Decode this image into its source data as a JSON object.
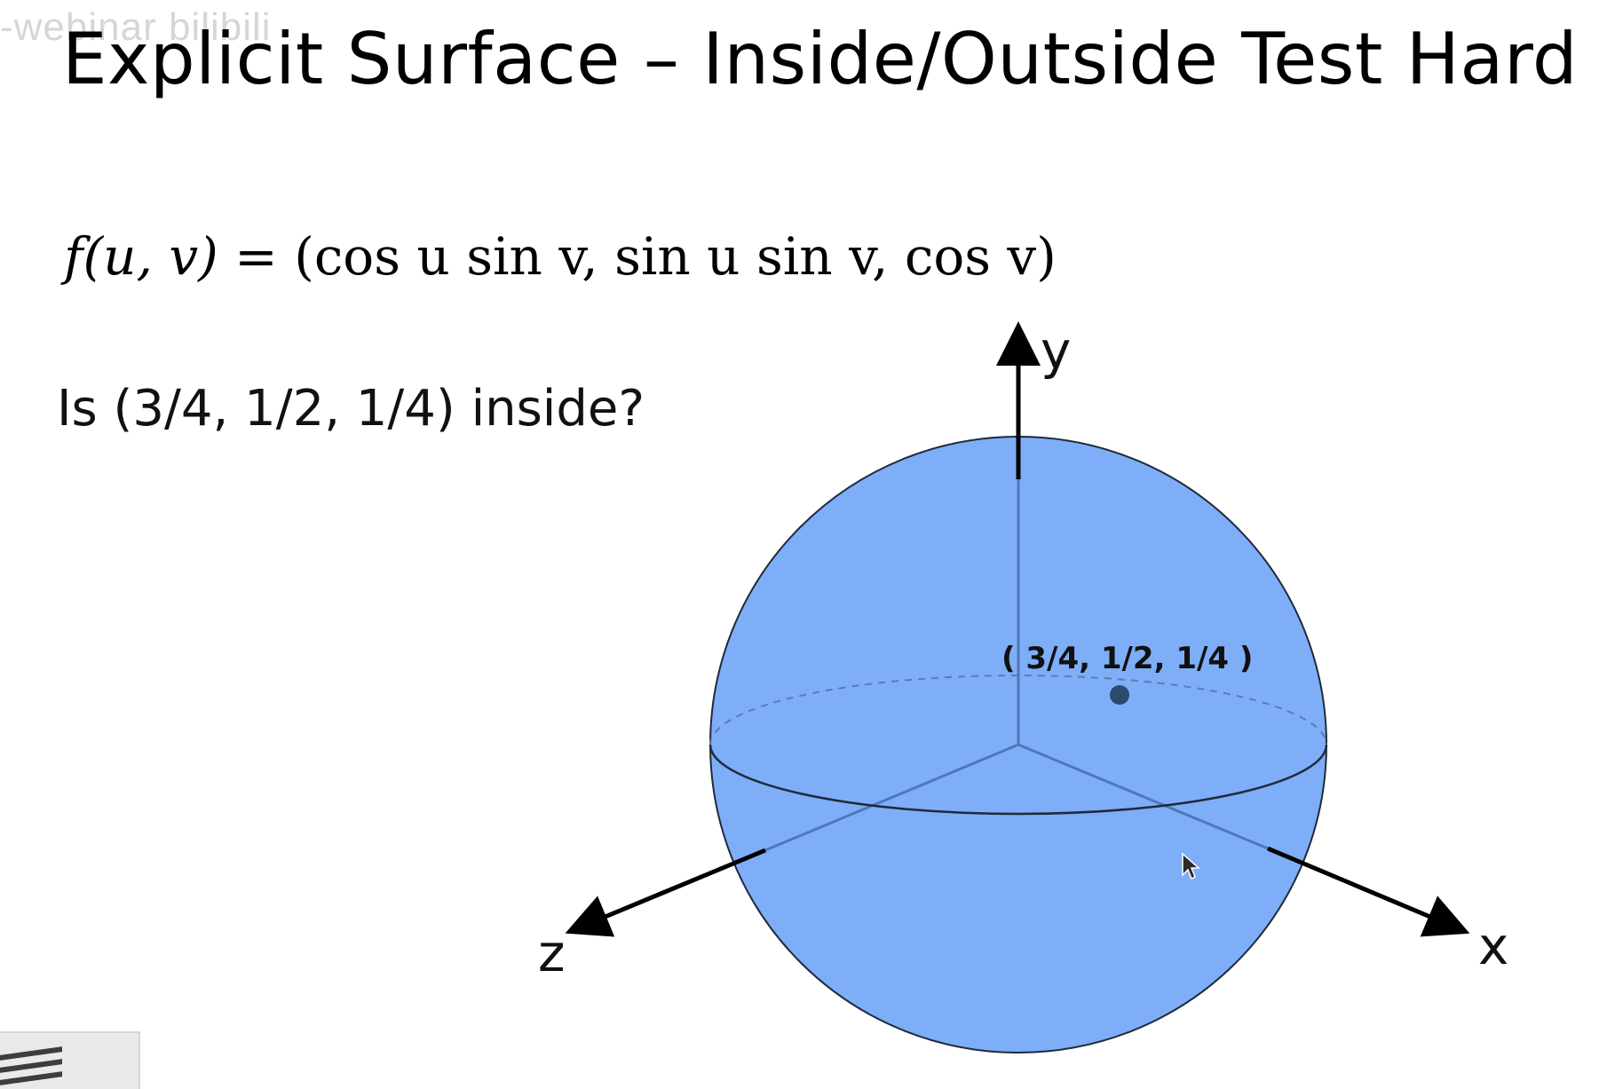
{
  "slide": {
    "watermark": "-webinar bilibili",
    "title": "Explicit Surface – Inside/Outside Test Hard",
    "formula": {
      "lhs": "f(u, v) = ",
      "rhs": "(cos u  sin v, sin u  sin v, cos v)"
    },
    "question": "Is (3/4, 1/2, 1/4) inside?"
  },
  "diagram": {
    "axes": {
      "x_label": "x",
      "y_label": "y",
      "z_label": "z"
    },
    "point_label": "( 3/4, 1/2, 1/4 )",
    "colors": {
      "sphere_fill": "#7eaef8",
      "sphere_stroke": "#1f2a3a",
      "point": "#2f4a6a",
      "axis": "#000000"
    },
    "icons": {
      "cursor": "arrow-cursor-icon",
      "thumbnail": "presenter-video-thumbnail"
    }
  }
}
